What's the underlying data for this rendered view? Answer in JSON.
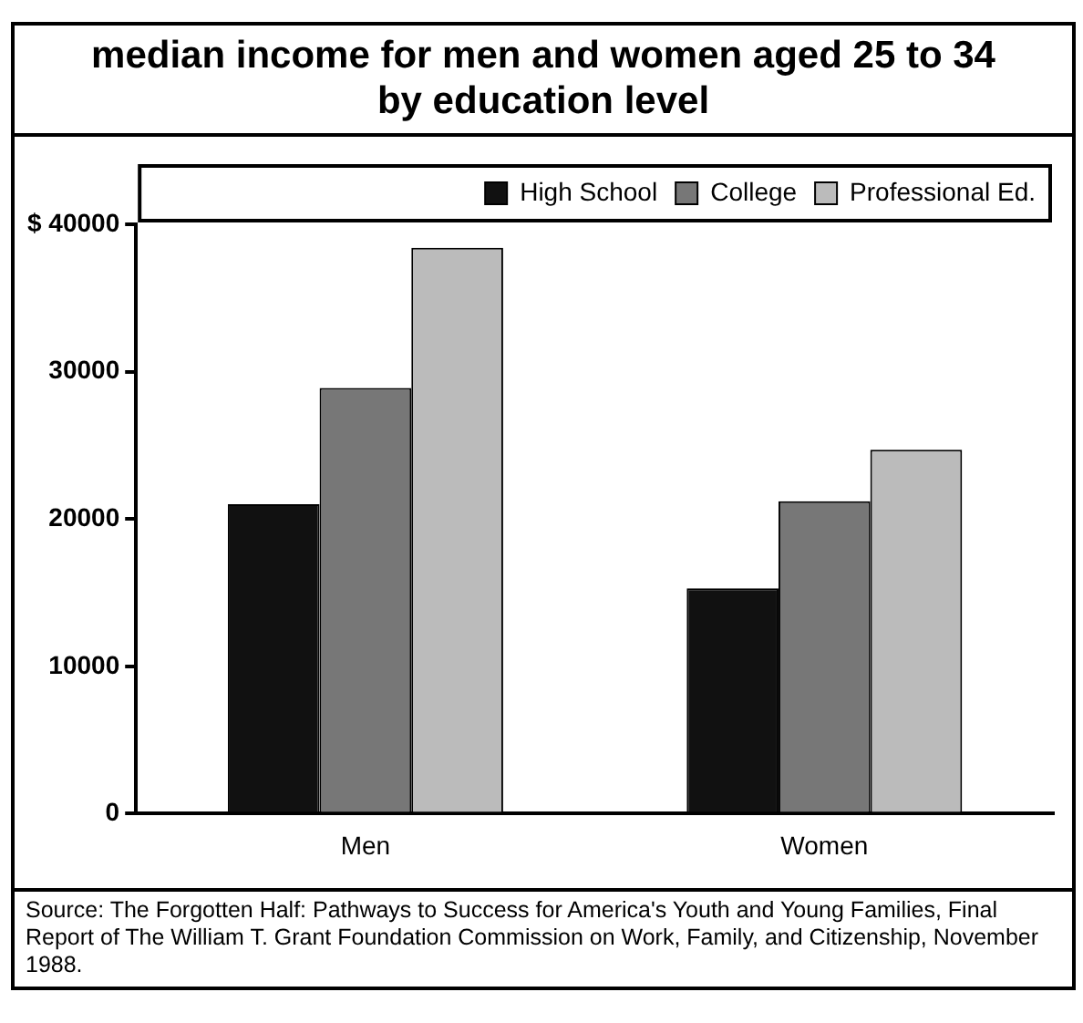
{
  "chart_data": {
    "type": "bar",
    "title": "median income for men and women aged 25 to 34\nby education level",
    "categories": [
      "Men",
      "Women"
    ],
    "series": [
      {
        "name": "High School",
        "color": "#111111",
        "values": [
          21000,
          15300
        ]
      },
      {
        "name": "College",
        "color": "#777777",
        "values": [
          28900,
          21200
        ]
      },
      {
        "name": "Professional Ed.",
        "color": "#bbbbbb",
        "values": [
          38400,
          24700
        ]
      }
    ],
    "ylim": [
      0,
      40000
    ],
    "yticks": [
      0,
      10000,
      20000,
      30000,
      {
        "value": 40000,
        "label": "$ 40000"
      }
    ],
    "grid": false,
    "legend": "top right",
    "annotations": [
      "Source: The Forgotten Half: Pathways to Success for America's Youth and Young Families, Final Report of The William T. Grant Foundation Commission on Work, Family, and Citizenship, November 1988."
    ]
  }
}
